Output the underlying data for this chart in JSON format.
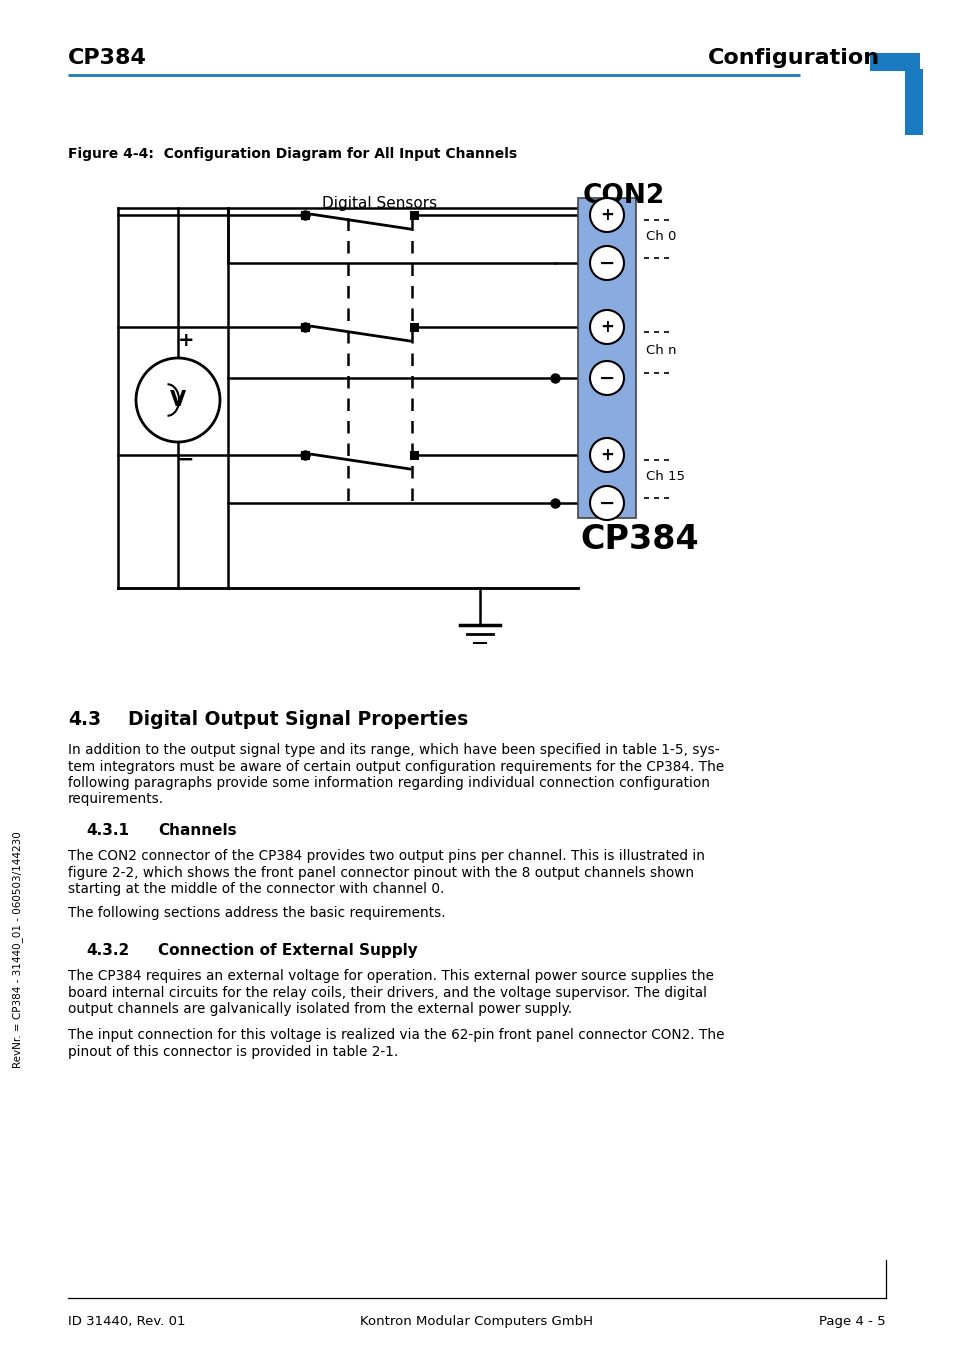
{
  "header_left": "CP384",
  "header_right": "Configuration",
  "header_line_color": "#1a7abf",
  "corner_mark_color": "#1a7abf",
  "fig_caption": "Figure 4-4:  Configuration Diagram for All Input Channels",
  "digital_sensors_label": "Digital Sensors",
  "con2_label": "CON2",
  "cp384_label": "CP384",
  "connector_color": "#8aabe0",
  "section_43_num": "4.3",
  "section_43_title": "Digital Output Signal Properties",
  "section_43_body_lines": [
    "In addition to the output signal type and its range, which have been specified in table 1-5, sys-",
    "tem integrators must be aware of certain output configuration requirements for the CP384. The",
    "following paragraphs provide some information regarding individual connection configuration",
    "requirements."
  ],
  "section_431_num": "4.3.1",
  "section_431_title": "Channels",
  "section_431_body1_lines": [
    "The CON2 connector of the CP384 provides two output pins per channel. This is illustrated in",
    "figure 2-2, which shows the front panel connector pinout with the 8 output channels shown",
    "starting at the middle of the connector with channel 0."
  ],
  "section_431_body2": "The following sections address the basic requirements.",
  "section_432_num": "4.3.2",
  "section_432_title": "Connection of External Supply",
  "section_432_body1_lines": [
    "The CP384 requires an external voltage for operation. This external power source supplies the",
    "board internal circuits for the relay coils, their drivers, and the voltage supervisor. The digital",
    "output channels are galvanically isolated from the external power supply."
  ],
  "section_432_body2_lines": [
    "The input connection for this voltage is realized via the 62-pin front panel connector CON2. The",
    "pinout of this connector is provided in table 2-1."
  ],
  "sidebar_text": "RevNr. = CP384 - 31440_01 - 060503/144230",
  "footer_id": "ID 31440, Rev. 01",
  "footer_center": "Kontron Modular Computers GmbH",
  "footer_right": "Page 4 - 5",
  "bg_color": "#ffffff",
  "text_color": "#000000"
}
